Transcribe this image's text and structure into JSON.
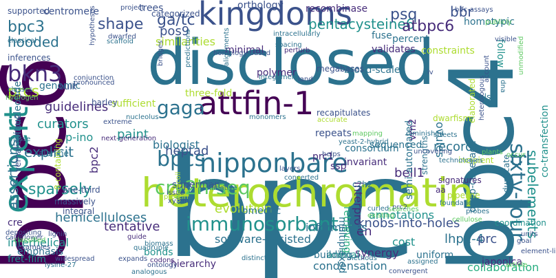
{
  "image": {
    "type": "word-cloud",
    "background": "#ffffff",
    "palette": [
      "#440154",
      "#472c7a",
      "#3b528b",
      "#2c728e",
      "#21918c",
      "#28ae80",
      "#5ec962",
      "#addc30",
      "#fde725"
    ]
  },
  "words": [
    {
      "text": "bpc",
      "c": "#2c728e"
    },
    {
      "text": "bpc6",
      "c": "#440154"
    },
    {
      "text": "bpc4",
      "c": "#2c728e"
    },
    {
      "text": "disclosed",
      "c": "#2c728e"
    },
    {
      "text": "heterochromatin",
      "c": "#addc30"
    },
    {
      "text": "kingdoms",
      "c": "#3b528b"
    },
    {
      "text": "expert",
      "c": "#21918c"
    },
    {
      "text": "attfin-1",
      "c": "#440154"
    },
    {
      "text": "sixty-four",
      "c": "#2c728e"
    },
    {
      "text": "nipponbare",
      "c": "#2c728e"
    },
    {
      "text": "immunosorbant",
      "c": "#21918c"
    },
    {
      "text": "cry2h-seq",
      "c": "#5ec962"
    },
    {
      "text": "bkn3",
      "c": "#472c7a"
    },
    {
      "text": "bpcs",
      "c": "#2c728e"
    },
    {
      "text": "gaga",
      "c": "#2c728e"
    },
    {
      "text": "pentacysteine6",
      "c": "#21918c"
    },
    {
      "text": "subelements",
      "c": "#21918c"
    },
    {
      "text": "shape",
      "c": "#3b528b"
    },
    {
      "text": "ga/tc",
      "c": "#3b528b"
    },
    {
      "text": "psq",
      "c": "#3b528b"
    },
    {
      "text": "bbr",
      "c": "#3b528b"
    },
    {
      "text": "atbpc6",
      "c": "#472c7a"
    },
    {
      "text": "trl",
      "c": "#2c728e"
    },
    {
      "text": "interpro",
      "c": "#472c7a"
    },
    {
      "text": "hooded",
      "c": "#2c728e"
    },
    {
      "text": "bpc3",
      "c": "#2c728e"
    },
    {
      "text": "prcs",
      "c": "#addc30"
    },
    {
      "text": "assertions",
      "c": "#2c728e"
    },
    {
      "text": "pos9",
      "c": "#3b528b"
    },
    {
      "text": "tentative",
      "c": "#472c7a"
    },
    {
      "text": "paint",
      "c": "#21918c"
    },
    {
      "text": "heptad",
      "c": "#3b528b"
    },
    {
      "text": "biologist",
      "c": "#2c728e"
    },
    {
      "text": "knobs-into-holes",
      "c": "#3b528b"
    },
    {
      "text": "sparsely",
      "c": "#21918c"
    },
    {
      "text": "hemicelluloses",
      "c": "#2c728e"
    },
    {
      "text": "evolution",
      "c": "#addc30"
    },
    {
      "text": "en",
      "c": "#472c7a"
    },
    {
      "text": "ovules",
      "c": "#2c728e"
    },
    {
      "text": "bell1",
      "c": "#472c7a"
    },
    {
      "text": "record",
      "c": "#2c728e"
    },
    {
      "text": "lhp1-4",
      "c": "#2c728e"
    },
    {
      "text": "prc",
      "c": "#3b528b"
    },
    {
      "text": "guidelines",
      "c": "#472c7a"
    },
    {
      "text": "curators",
      "c": "#21918c"
    },
    {
      "text": "explicit",
      "c": "#2c728e"
    },
    {
      "text": "p-ino",
      "c": "#21918c"
    },
    {
      "text": "bpc2",
      "c": "#472c7a"
    },
    {
      "text": "informatics",
      "c": "#2c728e"
    },
    {
      "text": "annotations",
      "c": "#21918c"
    },
    {
      "text": "software-assisted",
      "c": "#2c728e"
    },
    {
      "text": "synergy",
      "c": "#472c7a"
    },
    {
      "text": "condensation",
      "c": "#2c728e"
    },
    {
      "text": "interhelical",
      "c": "#21918c"
    },
    {
      "text": "collaboration",
      "c": "#28ae80"
    },
    {
      "text": "japonica",
      "c": "#472c7a"
    },
    {
      "text": "cost",
      "c": "#21918c"
    },
    {
      "text": "homotypic",
      "c": "#2c728e"
    },
    {
      "text": "recombinase",
      "c": "#472c7a"
    },
    {
      "text": "orthology",
      "c": "#3b528b"
    },
    {
      "text": "vernalization2",
      "c": "#3b528b"
    },
    {
      "text": "dinucleotide",
      "c": "#2c728e"
    },
    {
      "text": "multiplexed",
      "c": "#2c728e"
    },
    {
      "text": "retrieving",
      "c": "#28ae80"
    },
    {
      "text": "deep-coverage",
      "c": "#2c728e"
    },
    {
      "text": "semi-automated",
      "c": "#2c728e"
    },
    {
      "text": "vrn2",
      "c": "#472c7a"
    },
    {
      "text": "duplicate",
      "c": "#2c728e"
    },
    {
      "text": "co-transfection",
      "c": "#21918c"
    },
    {
      "text": "follow",
      "c": "#21918c"
    },
    {
      "text": "percent",
      "c": "#2c728e"
    },
    {
      "text": "constraints",
      "c": "#addc30"
    },
    {
      "text": "fuse",
      "c": "#2c728e"
    },
    {
      "text": "validates",
      "c": "#472c7a"
    },
    {
      "text": "broad-scale",
      "c": "#2c728e"
    },
    {
      "text": "megabases",
      "c": "#3b528b"
    },
    {
      "text": "minimal",
      "c": "#472c7a"
    },
    {
      "text": "similarities",
      "c": "#addc30"
    },
    {
      "text": "trees",
      "c": "#3b528b"
    },
    {
      "text": "categorized",
      "c": "#3b528b"
    },
    {
      "text": "centromere",
      "c": "#3b528b"
    },
    {
      "text": "homeotic",
      "c": "#2c728e"
    },
    {
      "text": "superman",
      "c": "#3b528b"
    },
    {
      "text": "polymer",
      "c": "#472c7a"
    },
    {
      "text": "sequenced",
      "c": "#2c728e"
    },
    {
      "text": "repeats",
      "c": "#3b528b"
    },
    {
      "text": "consortium",
      "c": "#2c728e"
    },
    {
      "text": "supported",
      "c": "#3b528b"
    },
    {
      "text": "inferences",
      "c": "#3b528b"
    },
    {
      "text": "genomic",
      "c": "#2c728e"
    },
    {
      "text": "sufficient",
      "c": "#addc30"
    },
    {
      "text": "three-fold",
      "c": "#addc30"
    },
    {
      "text": "recapitulates",
      "c": "#3b528b"
    },
    {
      "text": "invariant",
      "c": "#472c7a"
    },
    {
      "text": "ssp",
      "c": "#472c7a"
    },
    {
      "text": "prc1",
      "c": "#472c7a"
    },
    {
      "text": "one-third",
      "c": "#3b528b"
    },
    {
      "text": "massively",
      "c": "#3b528b"
    },
    {
      "text": "cre",
      "c": "#472c7a"
    },
    {
      "text": "emphasis",
      "c": "#2c728e"
    },
    {
      "text": "fret-flim",
      "c": "#21918c"
    },
    {
      "text": "bonds",
      "c": "#21918c"
    },
    {
      "text": "hierarchy",
      "c": "#472c7a"
    },
    {
      "text": "animal",
      "c": "#21918c"
    },
    {
      "text": "building",
      "c": "#2c728e"
    },
    {
      "text": "uniform",
      "c": "#2c728e"
    },
    {
      "text": "pipeline",
      "c": "#addc30"
    },
    {
      "text": "aa",
      "c": "#472c7a"
    },
    {
      "text": "incipient",
      "c": "#addc30"
    },
    {
      "text": "strengths",
      "c": "#2c728e"
    },
    {
      "text": "nls",
      "c": "#2c728e"
    },
    {
      "text": "alanine",
      "c": "#2c728e"
    },
    {
      "text": "barley",
      "c": "#3b528b"
    },
    {
      "text": "bulk",
      "c": "#3b528b"
    },
    {
      "text": "8-containing",
      "c": "#addc30"
    },
    {
      "text": "integral",
      "c": "#3b528b"
    },
    {
      "text": "c2h2",
      "c": "#2c728e"
    },
    {
      "text": "accurate",
      "c": "#addc30"
    },
    {
      "text": "yeast-2-hybrid",
      "c": "#2c728e"
    },
    {
      "text": "signatures",
      "c": "#472c7a"
    },
    {
      "text": "alignments",
      "c": "#2c728e"
    },
    {
      "text": "dna",
      "c": "#2c728e"
    },
    {
      "text": "visible",
      "c": "#3b528b"
    },
    {
      "text": "publicly",
      "c": "#5ec962"
    },
    {
      "text": "bifc-assays",
      "c": "#3b528b"
    },
    {
      "text": "project",
      "c": "#3b528b"
    },
    {
      "text": "classical",
      "c": "#2c728e"
    },
    {
      "text": "hypotheses",
      "c": "#3b528b"
    },
    {
      "text": "dwarfed",
      "c": "#3b528b"
    },
    {
      "text": "scaffold",
      "c": "#2c728e"
    },
    {
      "text": "intracellularly",
      "c": "#2c728e"
    },
    {
      "text": "spacing",
      "c": "#2c728e"
    },
    {
      "text": "perturb",
      "c": "#472c7a"
    },
    {
      "text": "homology-based",
      "c": "#3b528b"
    },
    {
      "text": "bridges",
      "c": "#3b528b"
    },
    {
      "text": "predictions",
      "c": "#2c728e"
    },
    {
      "text": "integument",
      "c": "#2c728e"
    },
    {
      "text": "land",
      "c": "#3b528b"
    },
    {
      "text": "conjunction",
      "c": "#3b528b"
    },
    {
      "text": "pronounced",
      "c": "#3b528b"
    },
    {
      "text": "classes",
      "c": "#2c728e"
    },
    {
      "text": "hydrogen",
      "c": "#5ec962"
    },
    {
      "text": "nucleolus",
      "c": "#2c728e"
    },
    {
      "text": "extreme",
      "c": "#3b528b"
    },
    {
      "text": "monomers",
      "c": "#2c728e"
    },
    {
      "text": "next-generation",
      "c": "#472c7a"
    },
    {
      "text": "binary",
      "c": "#2c728e"
    },
    {
      "text": "initiative",
      "c": "#2c728e"
    },
    {
      "text": "issue",
      "c": "#3b528b"
    },
    {
      "text": "protein",
      "c": "#addc30"
    },
    {
      "text": "xylem",
      "c": "#3b528b"
    },
    {
      "text": "coiled-coil",
      "c": "#addc30"
    },
    {
      "text": "prc2",
      "c": "#3b528b"
    },
    {
      "text": "searches",
      "c": "#5ec962"
    },
    {
      "text": "curled",
      "c": "#2c728e"
    },
    {
      "text": "existing",
      "c": "#5ec962"
    },
    {
      "text": "foundation",
      "c": "#2c728e"
    },
    {
      "text": "probes",
      "c": "#2c728e"
    },
    {
      "text": "cellulose",
      "c": "#5ec962"
    },
    {
      "text": "coordination",
      "c": "#21918c"
    },
    {
      "text": "units",
      "c": "#3b528b"
    },
    {
      "text": "goal",
      "c": "#3b528b"
    },
    {
      "text": "element-like",
      "c": "#3b528b"
    },
    {
      "text": "article",
      "c": "#5ec962"
    },
    {
      "text": "convergent",
      "c": "#3b528b"
    },
    {
      "text": "methods",
      "c": "#2c728e"
    },
    {
      "text": "distinct",
      "c": "#2c728e"
    },
    {
      "text": "codons",
      "c": "#472c7a"
    },
    {
      "text": "analogous",
      "c": "#2c728e"
    },
    {
      "text": "ontology",
      "c": "#3b528b"
    },
    {
      "text": "biomass",
      "c": "#2c728e"
    },
    {
      "text": "quadruple",
      "c": "#2c728e"
    },
    {
      "text": "guide",
      "c": "#472c7a"
    },
    {
      "text": "expands",
      "c": "#3b528b"
    },
    {
      "text": "widespread",
      "c": "#3b528b"
    },
    {
      "text": "examples",
      "c": "#3b528b"
    },
    {
      "text": "depositing",
      "c": "#3b528b"
    },
    {
      "text": "cauliflower",
      "c": "#3b528b"
    },
    {
      "text": "lysine-27",
      "c": "#2c728e"
    },
    {
      "text": "lignin",
      "c": "#3b528b"
    },
    {
      "text": "assigned",
      "c": "#2c728e"
    },
    {
      "text": "concerted",
      "c": "#2c728e"
    },
    {
      "text": "mapping",
      "c": "#5ec962"
    },
    {
      "text": "diminished",
      "c": "#2c728e"
    },
    {
      "text": "helps",
      "c": "#3b528b"
    },
    {
      "text": "uncovering",
      "c": "#3b528b"
    },
    {
      "text": "streets",
      "c": "#2c728e"
    },
    {
      "text": "technologies",
      "c": "#2c728e"
    },
    {
      "text": "layers",
      "c": "#3b528b"
    },
    {
      "text": "account",
      "c": "#3b528b"
    },
    {
      "text": "iv",
      "c": "#3b528b"
    },
    {
      "text": "heterologous",
      "c": "#3b528b"
    },
    {
      "text": "elaborated",
      "c": "#addc30"
    },
    {
      "text": "dwarfism",
      "c": "#addc30"
    },
    {
      "text": "occur",
      "c": "#5ec962"
    },
    {
      "text": "unmodified",
      "c": "#5ec962"
    },
    {
      "text": "classified",
      "c": "#5ec962"
    },
    {
      "text": "masse",
      "c": "#2c728e"
    },
    {
      "text": "plants",
      "c": "#5ec962"
    }
  ]
}
